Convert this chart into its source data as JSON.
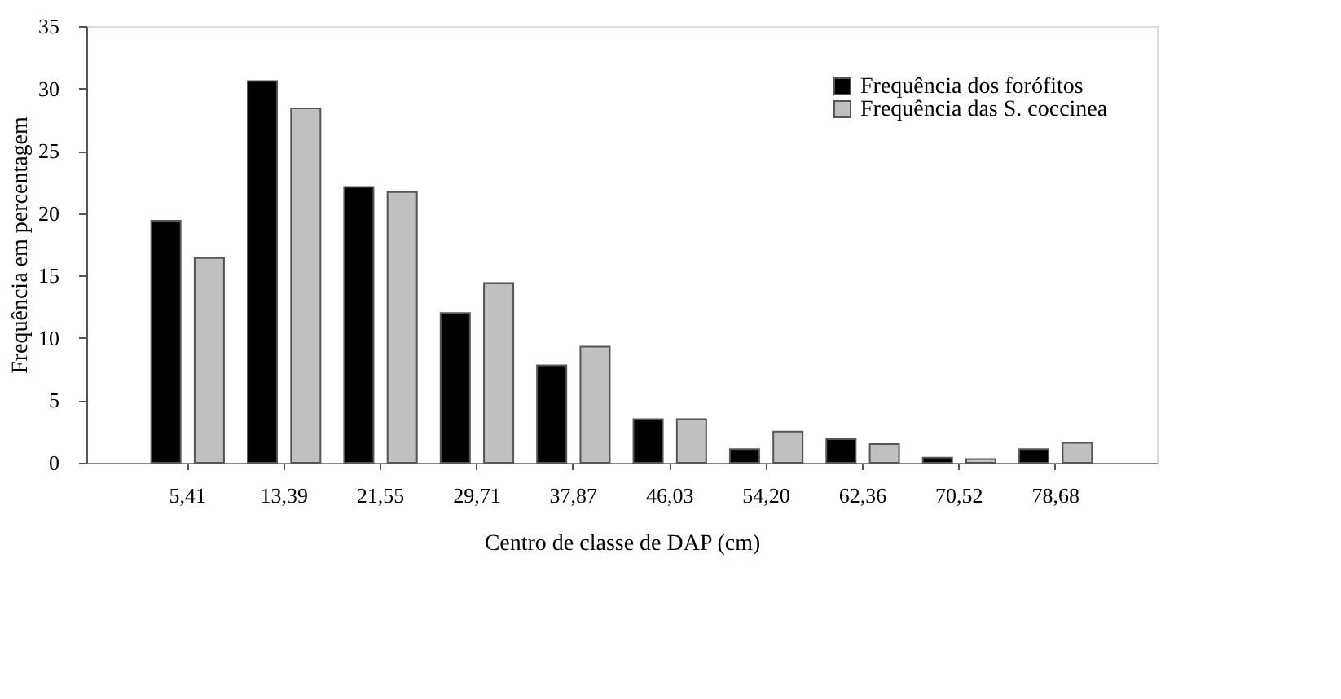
{
  "chart_data": {
    "type": "bar",
    "xlabel": "Centro de classe de DAP (cm)",
    "ylabel": "Frequência em percentagem",
    "categories": [
      "5,41",
      "13,39",
      "21,55",
      "29,71",
      "37,87",
      "46,03",
      "54,20",
      "62,36",
      "70,52",
      "78,68"
    ],
    "series": [
      {
        "name": "Frequência dos forófitos",
        "color": "#000000",
        "values": [
          19.4,
          30.6,
          22.1,
          12.0,
          7.8,
          3.5,
          1.1,
          1.9,
          0.4,
          1.1
        ]
      },
      {
        "name": "Frequência das S. coccinea",
        "color": "#c0c0c0",
        "values": [
          16.4,
          28.4,
          21.7,
          14.4,
          9.3,
          3.5,
          2.5,
          1.5,
          0.3,
          1.6
        ]
      }
    ],
    "ylim": [
      0,
      35
    ],
    "yticks": [
      0,
      5,
      10,
      15,
      20,
      25,
      30,
      35
    ],
    "grid": false,
    "legend": "top right"
  }
}
